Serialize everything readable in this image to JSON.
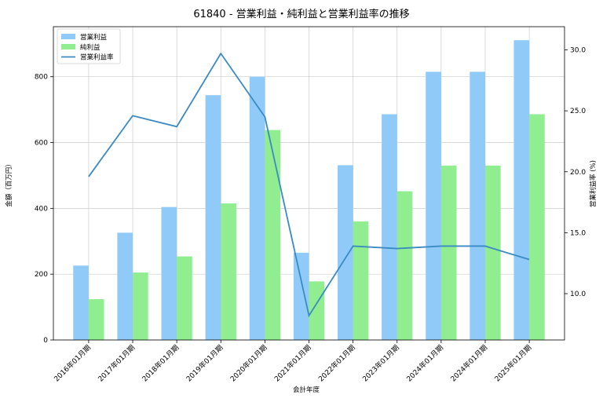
{
  "chart_data": {
    "type": "bar+line",
    "title": "61840 - 営業利益・純利益と営業利益率の推移",
    "xlabel": "会計年度",
    "ylabel_left": "金額（百万円）",
    "ylabel_right": "営業利益率 (%)",
    "categories": [
      "2016年01月期",
      "2017年01月期",
      "2018年01月期",
      "2019年01月期",
      "2020年01月期",
      "2021年01月期",
      "2022年01月期",
      "2023年01月期",
      "2024年01月期",
      "2024年01月期",
      "2025年01月期"
    ],
    "series": [
      {
        "name": "営業利益",
        "kind": "bar",
        "axis": "left",
        "color": "#90caf9",
        "values": [
          226,
          326,
          404,
          744,
          800,
          265,
          531,
          686,
          815,
          815,
          911
        ]
      },
      {
        "name": "純利益",
        "kind": "bar",
        "axis": "left",
        "color": "#90ee90",
        "values": [
          124,
          205,
          254,
          415,
          638,
          178,
          360,
          452,
          530,
          530,
          686
        ]
      },
      {
        "name": "営業利益率",
        "kind": "line",
        "axis": "right",
        "color": "#3a8bc2",
        "values": [
          19.6,
          24.6,
          23.7,
          29.7,
          24.5,
          8.2,
          13.9,
          13.7,
          13.9,
          13.9,
          12.8
        ]
      }
    ],
    "ylim_left": [
      0,
      952
    ],
    "yticks_left": [
      0,
      200,
      400,
      600,
      800
    ],
    "ylim_right": [
      6.2,
      31.9
    ],
    "yticks_right": [
      "10.0",
      "15.0",
      "20.0",
      "25.0",
      "30.0"
    ],
    "grid": true,
    "legend": "top-left"
  }
}
